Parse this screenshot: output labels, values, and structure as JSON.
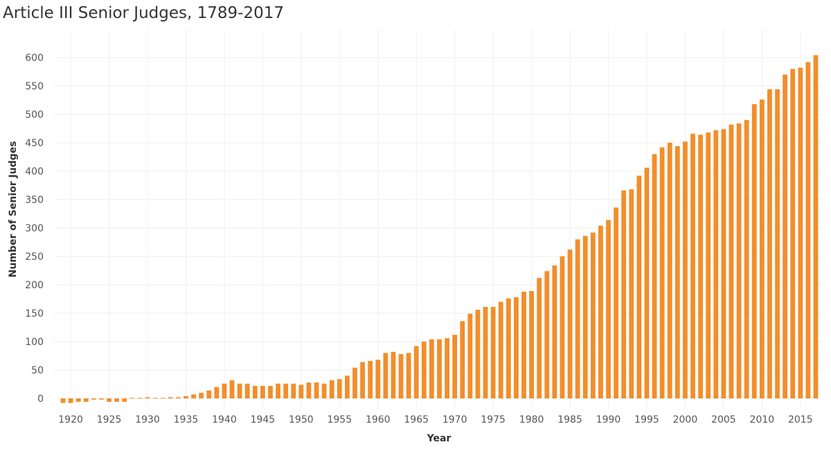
{
  "chart_data": {
    "type": "bar",
    "title": "Article III Senior Judges, 1789-2017",
    "xlabel": "Year",
    "ylabel": "Number of Senior Judges",
    "bar_color": "#F28E2B",
    "grid": true,
    "ylim": [
      0,
      630
    ],
    "yticks": [
      0,
      50,
      100,
      150,
      200,
      250,
      300,
      350,
      400,
      450,
      500,
      550,
      600
    ],
    "xticks": [
      1920,
      1925,
      1930,
      1935,
      1940,
      1945,
      1950,
      1955,
      1960,
      1965,
      1970,
      1975,
      1980,
      1985,
      1990,
      1995,
      2000,
      2005,
      2010,
      2015
    ],
    "x": [
      1919,
      1920,
      1921,
      1922,
      1923,
      1924,
      1925,
      1926,
      1927,
      1928,
      1929,
      1930,
      1931,
      1932,
      1933,
      1934,
      1935,
      1936,
      1937,
      1938,
      1939,
      1940,
      1941,
      1942,
      1943,
      1944,
      1945,
      1946,
      1947,
      1948,
      1949,
      1950,
      1951,
      1952,
      1953,
      1954,
      1955,
      1956,
      1957,
      1958,
      1959,
      1960,
      1961,
      1962,
      1963,
      1964,
      1965,
      1966,
      1967,
      1968,
      1969,
      1970,
      1971,
      1972,
      1973,
      1974,
      1975,
      1976,
      1977,
      1978,
      1979,
      1980,
      1981,
      1982,
      1983,
      1984,
      1985,
      1986,
      1987,
      1988,
      1989,
      1990,
      1991,
      1992,
      1993,
      1994,
      1995,
      1996,
      1997,
      1998,
      1999,
      2000,
      2001,
      2002,
      2003,
      2004,
      2005,
      2006,
      2007,
      2008,
      2009,
      2010,
      2011,
      2012,
      2013,
      2014,
      2015,
      2016,
      2017
    ],
    "values": [
      -8,
      -8,
      -6,
      -6,
      -2,
      -2,
      -6,
      -6,
      -6,
      1,
      1,
      2,
      1,
      1,
      2,
      2,
      4,
      7,
      10,
      14,
      20,
      26,
      32,
      26,
      26,
      22,
      22,
      22,
      26,
      26,
      26,
      24,
      28,
      28,
      26,
      32,
      34,
      40,
      54,
      64,
      66,
      68,
      80,
      82,
      78,
      80,
      92,
      100,
      104,
      104,
      106,
      112,
      136,
      149,
      156,
      161,
      161,
      170,
      176,
      178,
      188,
      189,
      212,
      224,
      234,
      250,
      262,
      280,
      286,
      292,
      304,
      314,
      336,
      366,
      368,
      392,
      406,
      430,
      442,
      450,
      444,
      452,
      466,
      464,
      468,
      472,
      474,
      482,
      484,
      490,
      518,
      526,
      544,
      544,
      570,
      580,
      582,
      592,
      604
    ]
  }
}
